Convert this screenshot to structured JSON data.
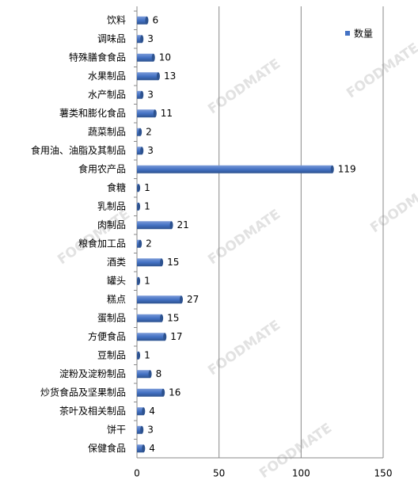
{
  "chart_data": {
    "type": "bar",
    "orientation": "horizontal",
    "categories": [
      "饮料",
      "调味品",
      "特殊膳食食品",
      "水果制品",
      "水产制品",
      "薯类和膨化食品",
      "蔬菜制品",
      "食用油、油脂及其制品",
      "食用农产品",
      "食糖",
      "乳制品",
      "肉制品",
      "粮食加工品",
      "酒类",
      "罐头",
      "糕点",
      "蛋制品",
      "方便食品",
      "豆制品",
      "淀粉及淀粉制品",
      "炒货食品及坚果制品",
      "茶叶及相关制品",
      "饼干",
      "保健食品"
    ],
    "series": [
      {
        "name": "数量",
        "color": "#4472c4",
        "values": [
          6,
          3,
          10,
          13,
          3,
          11,
          2,
          3,
          119,
          1,
          1,
          21,
          2,
          15,
          1,
          27,
          15,
          17,
          1,
          8,
          16,
          4,
          3,
          4
        ]
      }
    ],
    "xlim": [
      0,
      150
    ],
    "xticks": [
      0,
      50,
      100,
      150
    ],
    "grid": true,
    "legend": "top-right",
    "watermark": "FOODMATE"
  }
}
